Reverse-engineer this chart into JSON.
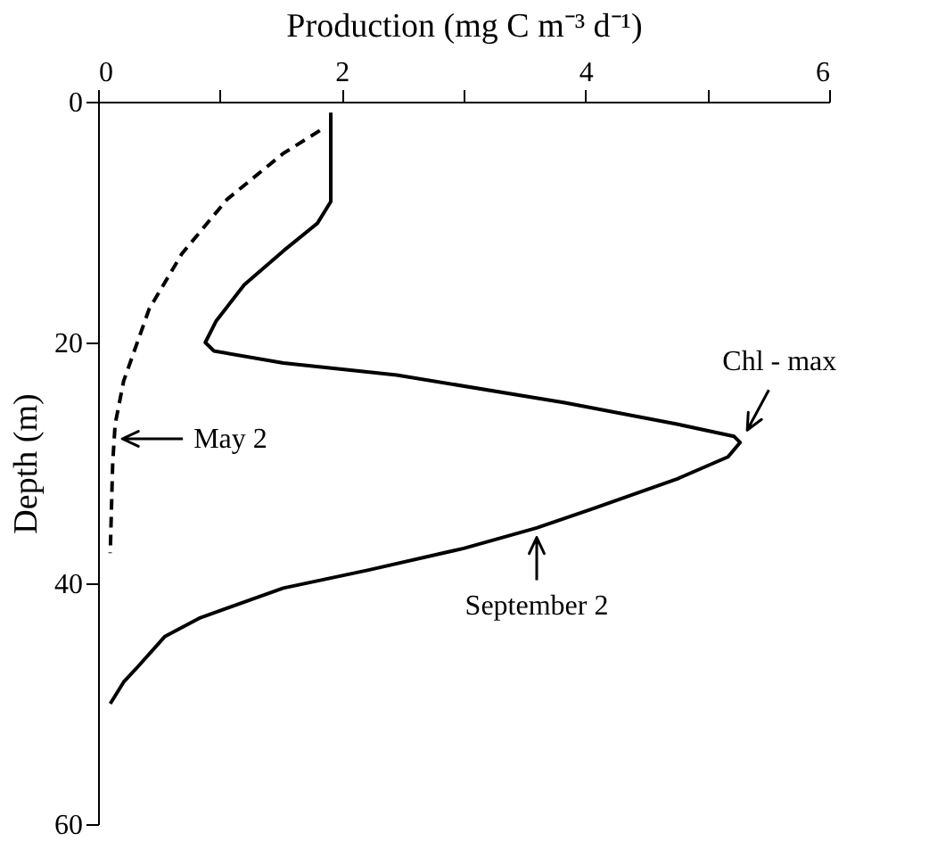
{
  "chart_data": {
    "type": "line",
    "xlabel": "Production (mg C m⁻³ d⁻¹)",
    "ylabel": "Depth (m)",
    "xlim": [
      0,
      6
    ],
    "xticks": [
      0,
      {
        "value": 1,
        "label": null
      },
      2,
      {
        "value": 3,
        "label": null
      },
      4,
      {
        "value": 5,
        "label": null
      },
      6
    ],
    "ylim": [
      60,
      0
    ],
    "yticks": [
      0,
      20,
      40,
      60
    ],
    "grid": false,
    "marker": "none",
    "series": [
      {
        "color": "#000000",
        "line_style": "dashed",
        "x": [
          1.82,
          1.52,
          1.06,
          0.69,
          0.42,
          0.21,
          0.14,
          0.12,
          0.1
        ],
        "values": [
          2.4,
          4.3,
          8.1,
          12.6,
          17.2,
          23.2,
          26.8,
          30,
          37.5
        ]
      },
      {
        "color": "#000000",
        "line_style": "solid",
        "x": [
          1.91,
          1.91,
          1.8,
          1.52,
          1.2,
          0.97,
          0.88,
          0.95,
          1.52,
          2.45,
          3.83,
          4.76,
          5.22,
          5.27,
          5.17,
          4.76,
          4.06,
          3.6,
          3.0,
          2.22,
          1.52,
          0.83,
          0.55,
          0.32,
          0.21,
          0.1
        ],
        "values": [
          0.9,
          8.3,
          10.1,
          12.4,
          15.2,
          18.2,
          20.0,
          20.7,
          21.7,
          22.7,
          25.0,
          26.8,
          27.8,
          28.3,
          29.5,
          31.3,
          33.8,
          35.4,
          37.1,
          38.9,
          40.4,
          42.9,
          44.4,
          47.0,
          48.2,
          50.0
        ]
      }
    ],
    "annotations": [
      {
        "text": "May 2",
        "x": 0.14,
        "y": 28
      },
      {
        "text": "Chl - max",
        "x": 5.3,
        "y": 27.8
      },
      {
        "text": "September 2",
        "x": 3.6,
        "y": 35.6
      }
    ]
  }
}
